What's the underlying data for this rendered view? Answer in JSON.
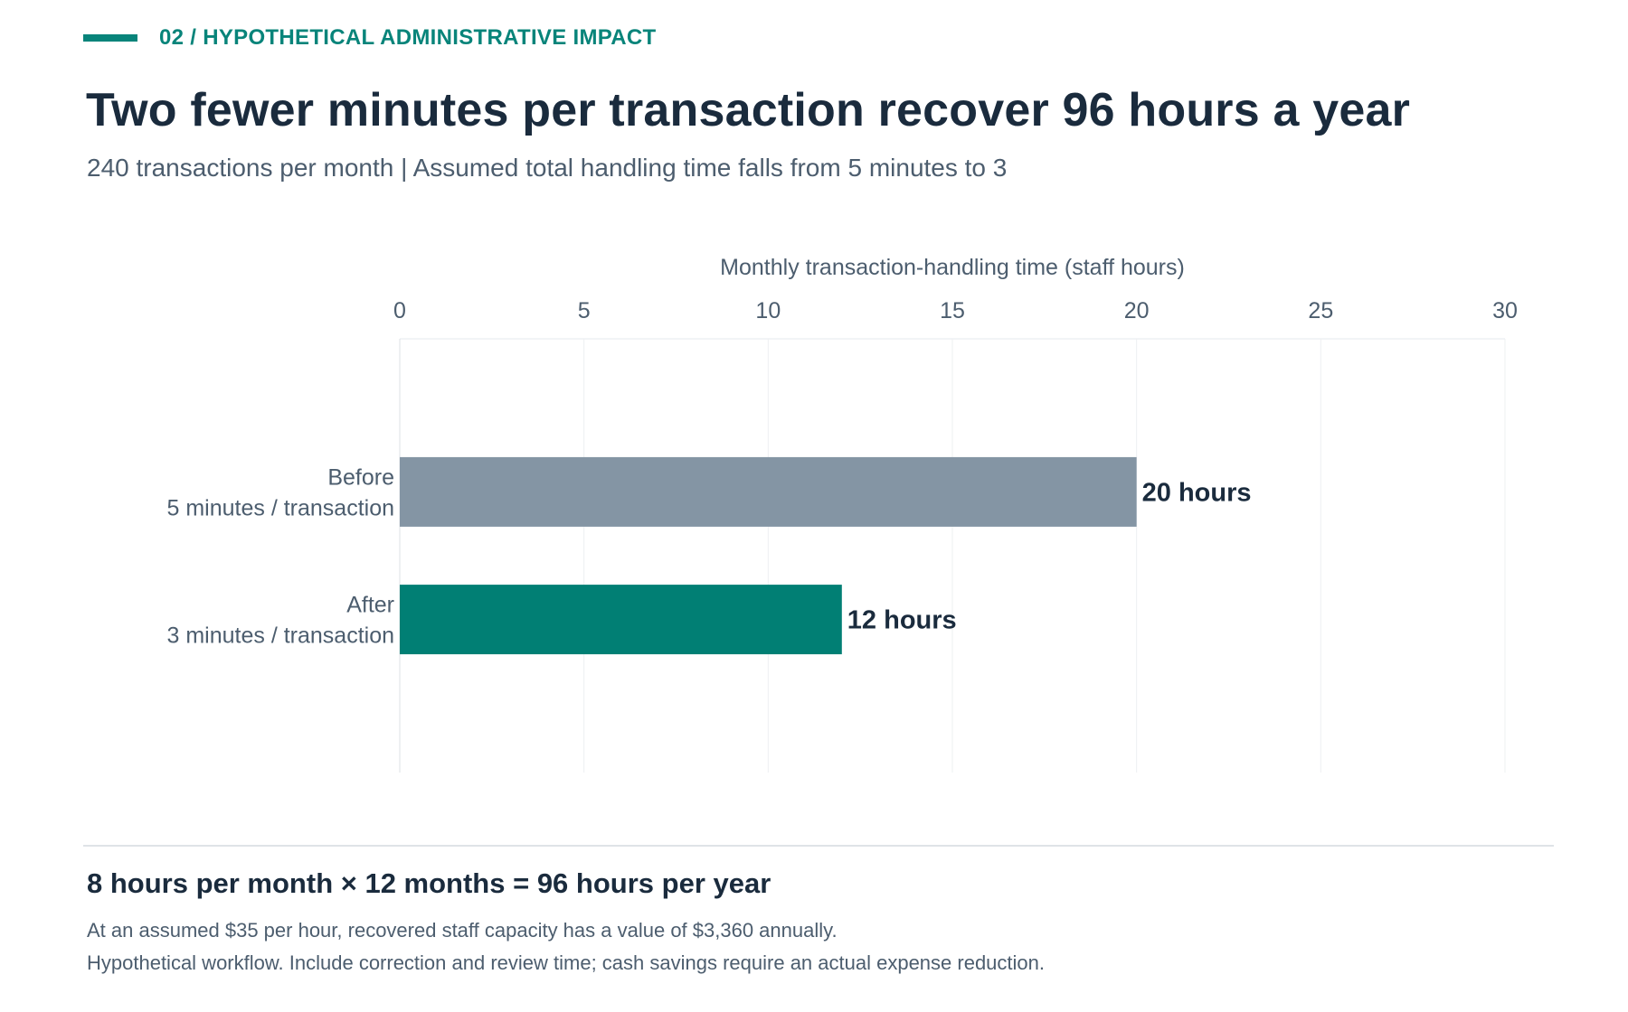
{
  "header": {
    "eyebrow": "02 / HYPOTHETICAL ADMINISTRATIVE IMPACT",
    "title": "Two fewer minutes per transaction recover 96 hours a year",
    "subtitle": "240 transactions per month  |  Assumed total handling time falls from 5 minutes to 3"
  },
  "chart_data": {
    "type": "bar",
    "orientation": "horizontal",
    "xlabel": "Monthly transaction-handling time (staff hours)",
    "xlim": [
      0,
      30
    ],
    "xticks": [
      0,
      5,
      10,
      15,
      20,
      25,
      30
    ],
    "grid": true,
    "bars": [
      {
        "category": "Before",
        "sublabel": "5 minutes / transaction",
        "value": 20,
        "label": "20 hours",
        "color": "#8495a4"
      },
      {
        "category": "After",
        "sublabel": "3 minutes / transaction",
        "value": 12,
        "label": "12 hours",
        "color": "#017f74"
      }
    ]
  },
  "summary": {
    "headline": "8 hours per month × 12 months = 96 hours per year",
    "note1": "At an assumed $35 per hour, recovered staff capacity has a value of $3,360 annually.",
    "note2": "Hypothetical workflow. Include correction and review time; cash savings require an actual expense reduction."
  },
  "colors": {
    "accent": "#08847a",
    "before_bar": "#8495a4",
    "after_bar": "#017f74",
    "text_dark": "#1a2b3d",
    "text_muted": "#4c5d6e"
  }
}
